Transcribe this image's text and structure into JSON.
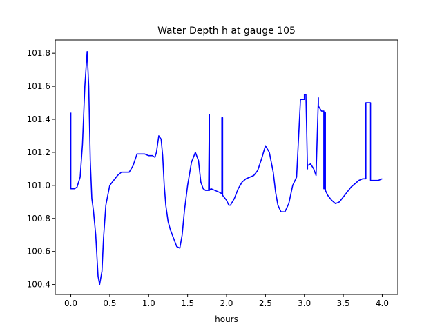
{
  "chart_data": {
    "type": "line",
    "title": "Water Depth h at gauge 105",
    "xlabel": "hours",
    "ylabel": "",
    "xlim": [
      -0.2,
      4.2
    ],
    "ylim": [
      100.34,
      101.88
    ],
    "xticks": [
      0.0,
      0.5,
      1.0,
      1.5,
      2.0,
      2.5,
      3.0,
      3.5,
      4.0
    ],
    "xtick_labels": [
      "0.0",
      "0.5",
      "1.0",
      "1.5",
      "2.0",
      "2.5",
      "3.0",
      "3.5",
      "4.0"
    ],
    "yticks": [
      100.4,
      100.6,
      100.8,
      101.0,
      101.2,
      101.4,
      101.6,
      101.8
    ],
    "ytick_labels": [
      "100.4",
      "100.6",
      "100.8",
      "101.0",
      "101.2",
      "101.4",
      "101.6",
      "101.8"
    ],
    "grid": false,
    "series": [
      {
        "color": "#0000ff",
        "x": [
          0.0,
          0.0,
          0.0,
          0.05,
          0.08,
          0.12,
          0.15,
          0.18,
          0.21,
          0.23,
          0.25,
          0.27,
          0.29,
          0.32,
          0.35,
          0.37,
          0.4,
          0.42,
          0.45,
          0.5,
          0.55,
          0.6,
          0.65,
          0.7,
          0.75,
          0.8,
          0.85,
          0.9,
          0.95,
          1.0,
          1.05,
          1.08,
          1.1,
          1.13,
          1.16,
          1.18,
          1.2,
          1.22,
          1.25,
          1.28,
          1.32,
          1.36,
          1.4,
          1.43,
          1.46,
          1.5,
          1.55,
          1.6,
          1.64,
          1.67,
          1.7,
          1.73,
          1.75,
          1.77,
          1.78,
          1.78,
          1.78,
          1.8,
          1.85,
          1.9,
          1.94,
          1.94,
          1.95,
          1.95,
          2.0,
          2.03,
          2.05,
          2.1,
          2.15,
          2.2,
          2.25,
          2.3,
          2.35,
          2.4,
          2.45,
          2.5,
          2.55,
          2.6,
          2.63,
          2.66,
          2.7,
          2.75,
          2.8,
          2.85,
          2.9,
          2.95,
          3.0,
          3.0,
          3.02,
          3.04,
          3.04,
          3.08,
          3.12,
          3.15,
          3.18,
          3.18,
          3.22,
          3.25,
          3.25,
          3.26,
          3.26,
          3.27,
          3.27,
          3.3,
          3.35,
          3.4,
          3.45,
          3.5,
          3.55,
          3.6,
          3.65,
          3.7,
          3.75,
          3.79,
          3.79,
          3.82,
          3.85,
          3.85,
          3.9,
          3.95,
          4.0
        ],
        "y": [
          101.44,
          100.98,
          100.98,
          100.98,
          100.99,
          101.05,
          101.25,
          101.6,
          101.81,
          101.6,
          101.15,
          100.92,
          100.85,
          100.7,
          100.45,
          100.4,
          100.48,
          100.68,
          100.88,
          101.0,
          101.03,
          101.06,
          101.08,
          101.08,
          101.08,
          101.12,
          101.19,
          101.19,
          101.19,
          101.18,
          101.18,
          101.17,
          101.2,
          101.3,
          101.28,
          101.18,
          101.0,
          100.88,
          100.78,
          100.73,
          100.68,
          100.63,
          100.62,
          100.7,
          100.85,
          101.0,
          101.14,
          101.2,
          101.15,
          101.02,
          100.98,
          100.97,
          100.97,
          100.97,
          101.43,
          101.43,
          100.97,
          100.98,
          100.97,
          100.96,
          100.95,
          101.41,
          101.41,
          100.94,
          100.91,
          100.88,
          100.88,
          100.92,
          100.98,
          101.02,
          101.04,
          101.05,
          101.06,
          101.09,
          101.16,
          101.24,
          101.2,
          101.08,
          100.96,
          100.88,
          100.84,
          100.84,
          100.89,
          101.0,
          101.05,
          101.52,
          101.52,
          101.55,
          101.55,
          101.1,
          101.12,
          101.13,
          101.1,
          101.06,
          101.53,
          101.48,
          101.45,
          101.45,
          100.98,
          100.98,
          101.44,
          101.44,
          100.97,
          100.94,
          100.91,
          100.89,
          100.9,
          100.93,
          100.96,
          100.99,
          101.01,
          101.03,
          101.04,
          101.04,
          101.5,
          101.5,
          101.5,
          101.03,
          101.03,
          101.03,
          101.04
        ]
      }
    ]
  }
}
